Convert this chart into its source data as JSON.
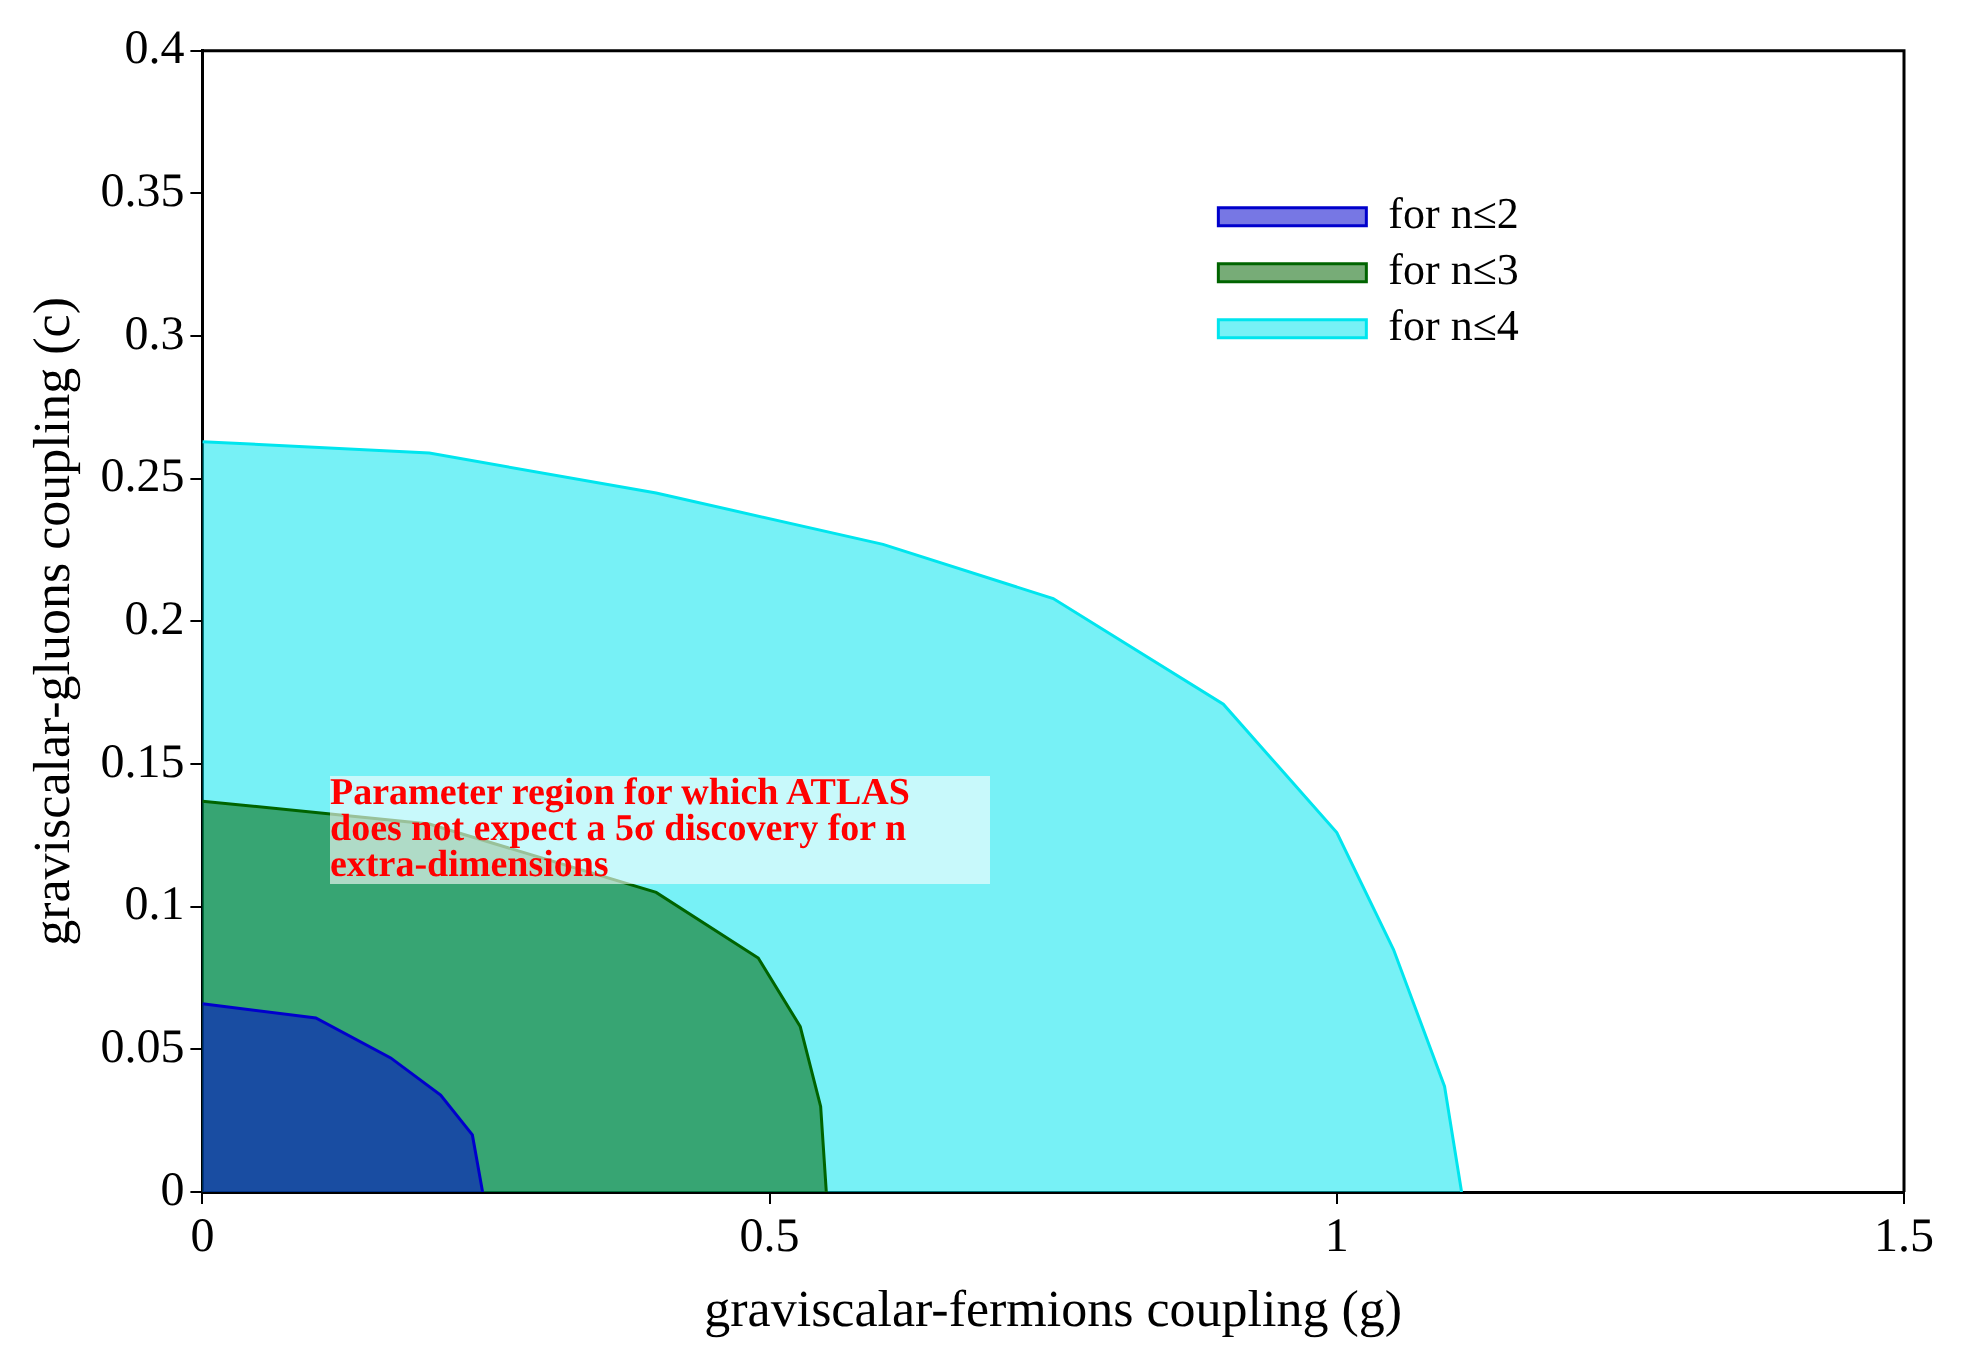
{
  "chart_data": {
    "type": "area",
    "xlabel": "graviscalar-fermions coupling (g)",
    "ylabel": "graviscalar-gluons coupling (c)",
    "xlim": [
      0,
      1.5
    ],
    "xticks": [
      0,
      0.5,
      1,
      1.5
    ],
    "ylim": [
      0,
      0.4
    ],
    "yticks": [
      0,
      0.05,
      0.1,
      0.15,
      0.2,
      0.25,
      0.3,
      0.35,
      0.4
    ],
    "grid": false,
    "legend": "top right",
    "annotations": [
      "Parameter region for which ATLAS does not expect a 5σ discovery for n extra-dimensions"
    ],
    "series": [
      {
        "name": "for n≤2",
        "color": "#0000cc",
        "x": [
          0,
          0.1,
          0.166,
          0.21,
          0.238,
          0.247
        ],
        "values": [
          0.066,
          0.061,
          0.047,
          0.034,
          0.02,
          0
        ]
      },
      {
        "name": "for n≤3",
        "color": "#006400",
        "x": [
          0,
          0.2,
          0.4,
          0.49,
          0.527,
          0.545,
          0.55
        ],
        "values": [
          0.137,
          0.129,
          0.105,
          0.082,
          0.058,
          0.03,
          0
        ]
      },
      {
        "name": "for n≤4",
        "color": "#00e5ee",
        "x": [
          0,
          0.2,
          0.4,
          0.6,
          0.75,
          0.9,
          1.0,
          1.05,
          1.095,
          1.11
        ],
        "values": [
          0.263,
          0.259,
          0.245,
          0.227,
          0.208,
          0.171,
          0.126,
          0.085,
          0.037,
          0
        ]
      }
    ]
  }
}
